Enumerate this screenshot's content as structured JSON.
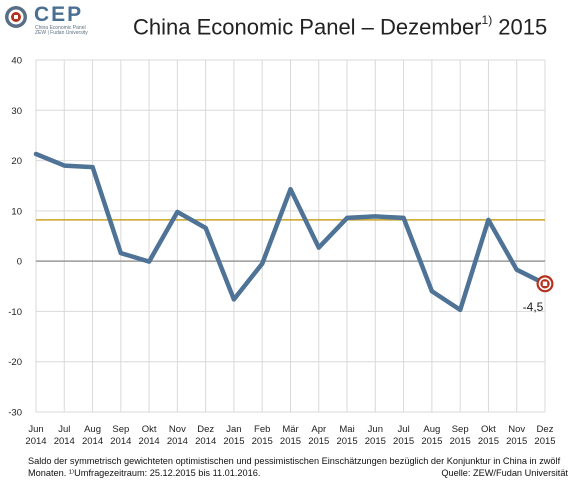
{
  "logo": {
    "word": "CEP",
    "line1": "China Economic Panel",
    "line2": "ZEW | Fudan University"
  },
  "header": {
    "title_main": "China Economic Panel – Dezember",
    "title_sup": "1)",
    "title_year": " 2015"
  },
  "chart_data": {
    "type": "line",
    "title": "China Economic Panel – Dezember 1) 2015",
    "categories": [
      [
        "Jun",
        "2014"
      ],
      [
        "Jul",
        "2014"
      ],
      [
        "Aug",
        "2014"
      ],
      [
        "Sep",
        "2014"
      ],
      [
        "Okt",
        "2014"
      ],
      [
        "Nov",
        "2014"
      ],
      [
        "Dez",
        "2014"
      ],
      [
        "Jan",
        "2015"
      ],
      [
        "Feb",
        "2015"
      ],
      [
        "Mär",
        "2015"
      ],
      [
        "Apr",
        "2015"
      ],
      [
        "Mai",
        "2015"
      ],
      [
        "Jun",
        "2015"
      ],
      [
        "Jul",
        "2015"
      ],
      [
        "Aug",
        "2015"
      ],
      [
        "Sep",
        "2015"
      ],
      [
        "Okt",
        "2015"
      ],
      [
        "Nov",
        "2015"
      ],
      [
        "Dez",
        "2015"
      ]
    ],
    "values": [
      21.3,
      19.0,
      18.7,
      1.6,
      -0.1,
      9.8,
      6.6,
      -7.6,
      -0.5,
      14.3,
      2.7,
      8.6,
      8.9,
      8.6,
      -6.0,
      -9.7,
      8.2,
      -1.7,
      -4.5
    ],
    "ylim": [
      -30,
      40
    ],
    "yticks": [
      -30,
      -20,
      -10,
      0,
      10,
      20,
      30,
      40
    ],
    "reference_line": 8.2,
    "last_value_label": "-4,5",
    "colors": {
      "line": "#4f7396",
      "reference": "#c9a227",
      "zero": "#9a9a9a",
      "grid": "#d9d9d9",
      "marker_fill": "#b5311d",
      "marker_ring": "#ffffff"
    },
    "grid": true
  },
  "footnote": {
    "line1": "Saldo der symmetrisch gewichteten optimistischen und pessimistischen Einschätzungen bezüglich der Konjunktur in China in zwölf",
    "line2": "Monaten. ¹⁾Umfragezeitraum: 25.12.2015 bis 11.01.2016.",
    "source": "Quelle: ZEW/Fudan Universität"
  }
}
